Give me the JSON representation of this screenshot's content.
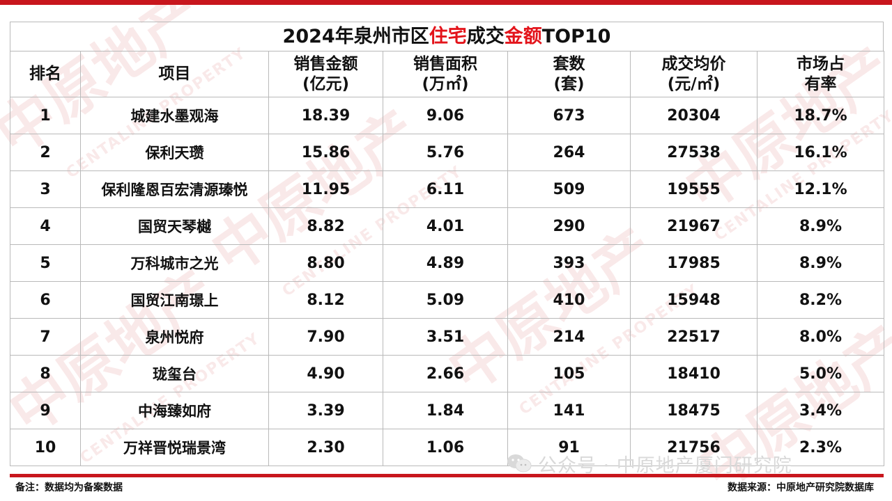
{
  "title": {
    "part1": "2024年泉州市区",
    "part2": "住宅",
    "part3": "成交",
    "part4": "金额",
    "part5": "TOP10"
  },
  "headers": {
    "rank": "排名",
    "project": "项目",
    "amount_line1": "销售金额",
    "amount_line2": "(亿元)",
    "area_line1": "销售面积",
    "area_line2": "(万㎡)",
    "units_line1": "套数",
    "units_line2": "(套)",
    "price_line1": "成交均价",
    "price_line2": "(元/㎡)",
    "share_line1": "市场占",
    "share_line2": "有率"
  },
  "rows": [
    {
      "rank": "1",
      "project": "城建水墨观海",
      "amount": "18.39",
      "area": "9.06",
      "units": "673",
      "price": "20304",
      "share": "18.7%"
    },
    {
      "rank": "2",
      "project": "保利天瓒",
      "amount": "15.86",
      "area": "5.76",
      "units": "264",
      "price": "27538",
      "share": "16.1%"
    },
    {
      "rank": "3",
      "project": "保利隆恩百宏清源瑧悦",
      "amount": "11.95",
      "area": "6.11",
      "units": "509",
      "price": "19555",
      "share": "12.1%"
    },
    {
      "rank": "4",
      "project": "国贸天琴樾",
      "amount": "8.82",
      "area": "4.01",
      "units": "290",
      "price": "21967",
      "share": "8.9%"
    },
    {
      "rank": "5",
      "project": "万科城市之光",
      "amount": "8.80",
      "area": "4.89",
      "units": "393",
      "price": "17985",
      "share": "8.9%"
    },
    {
      "rank": "6",
      "project": "国贸江南璟上",
      "amount": "8.12",
      "area": "5.09",
      "units": "410",
      "price": "15948",
      "share": "8.2%"
    },
    {
      "rank": "7",
      "project": "泉州悦府",
      "amount": "7.90",
      "area": "3.51",
      "units": "214",
      "price": "22517",
      "share": "8.0%"
    },
    {
      "rank": "8",
      "project": "珑玺台",
      "amount": "4.90",
      "area": "2.66",
      "units": "105",
      "price": "18410",
      "share": "5.0%"
    },
    {
      "rank": "9",
      "project": "中海臻如府",
      "amount": "3.39",
      "area": "1.84",
      "units": "141",
      "price": "18475",
      "share": "3.4%"
    },
    {
      "rank": "10",
      "project": "万祥晋悦瑞景湾",
      "amount": "2.30",
      "area": "1.06",
      "units": "91",
      "price": "21756",
      "share": "2.3%"
    }
  ],
  "footer": {
    "note": "备注：数据均为备案数据",
    "source": "数据来源：中原地产研究院数据库",
    "wechat": "公众号 · 中原地产厦门研究院"
  },
  "watermark": {
    "cn": "中原地产",
    "en": "CENTALINE PROPERTY"
  },
  "colors": {
    "accent": "#c8161d",
    "highlight_text": "#e3141b",
    "grid_line": "#b9b9b9"
  },
  "icons": {
    "wechat": "wechat-icon"
  }
}
